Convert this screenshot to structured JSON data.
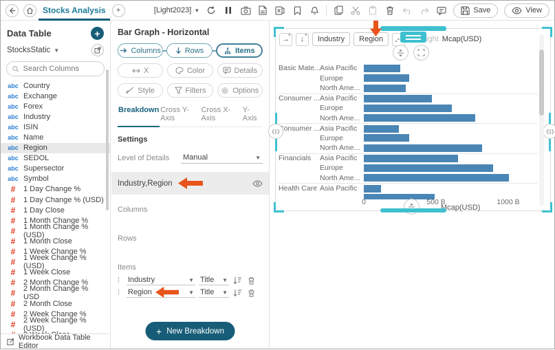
{
  "toolbar": {
    "tab_title": "Stocks Analysis",
    "workspace": "[Light2023]",
    "save_label": "Save",
    "view_label": "View"
  },
  "left_panel": {
    "title": "Data Table",
    "table_name": "StocksStatic",
    "search_placeholder": "Search Columns",
    "footer": "Workbook Data Table Editor",
    "columns": [
      {
        "type": "text",
        "label": "Country"
      },
      {
        "type": "text",
        "label": "Exchange"
      },
      {
        "type": "text",
        "label": "Forex"
      },
      {
        "type": "text",
        "label": "Industry"
      },
      {
        "type": "text",
        "label": "ISIN"
      },
      {
        "type": "text",
        "label": "Name"
      },
      {
        "type": "text",
        "label": "Region",
        "selected": true
      },
      {
        "type": "text",
        "label": "SEDOL"
      },
      {
        "type": "text",
        "label": "Supersector"
      },
      {
        "type": "text",
        "label": "Symbol"
      },
      {
        "type": "number",
        "label": "1 Day Change %"
      },
      {
        "type": "number",
        "label": "1 Day Change % (USD)"
      },
      {
        "type": "number",
        "label": "1 Day Close"
      },
      {
        "type": "number",
        "label": "1 Month Change %"
      },
      {
        "type": "number",
        "label": "1 Month Change % (USD)"
      },
      {
        "type": "number",
        "label": "1 Month Close"
      },
      {
        "type": "number",
        "label": "1 Week Change %"
      },
      {
        "type": "number",
        "label": "1 Week Change % (USD)"
      },
      {
        "type": "number",
        "label": "1 Week Close"
      },
      {
        "type": "number",
        "label": "2 Month Change %"
      },
      {
        "type": "number",
        "label": "2 Month Change % USD"
      },
      {
        "type": "number",
        "label": "2 Month Close"
      },
      {
        "type": "number",
        "label": "2 Week Change %"
      },
      {
        "type": "number",
        "label": "2 Week Change % (USD)"
      },
      {
        "type": "number",
        "label": "2 Week Close",
        "clipped": true
      }
    ]
  },
  "middle_panel": {
    "title": "Bar Graph - Horizontal",
    "buttons": {
      "columns": "Columns",
      "rows": "Rows",
      "items": "Items",
      "x": "X",
      "color": "Color",
      "details": "Details",
      "style": "Style",
      "filters": "Filters",
      "options": "Options"
    },
    "tabs": [
      "Breakdown",
      "Cross Y-Axis",
      "Cross X-Axis",
      "Y-Axis"
    ],
    "active_tab": "Breakdown",
    "settings_label": "Settings",
    "level_of_details_label": "Level of Details",
    "level_of_details_value": "Manual",
    "breakdown_name": "Industry,Region",
    "columns_label": "Columns",
    "rows_label": "Rows",
    "items_label": "Items",
    "items": [
      {
        "name": "Industry",
        "mode": "Title"
      },
      {
        "name": "Region",
        "mode": "Title",
        "arrow": true
      }
    ],
    "new_breakdown_label": "New Breakdown"
  },
  "chart_panel": {
    "header": {
      "chips": [
        "Industry",
        "Region"
      ],
      "height_label": "Height",
      "height_value": "Mcap(USD)"
    }
  },
  "chart_data": {
    "type": "bar",
    "orientation": "horizontal",
    "title": "Bar Graph - Horizontal",
    "xlabel": "Mcap(USD)",
    "x_ticks": [
      "0",
      "500 B",
      "1000 B"
    ],
    "xlim_billions": [
      0,
      1200
    ],
    "unit": "billions USD (B)",
    "bar_color": "#4a86b5",
    "legend": "none",
    "grid": "off",
    "rows": [
      {
        "group": "Basic Mate...",
        "region": "Asia Pacific",
        "value": 253
      },
      {
        "group": "",
        "region": "Europe",
        "value": 313
      },
      {
        "group": "",
        "region": "North Ame...",
        "value": 292
      },
      {
        "group": "Consumer ...",
        "region": "Asia Pacific",
        "value": 469,
        "sep": true
      },
      {
        "group": "",
        "region": "Europe",
        "value": 608
      },
      {
        "group": "",
        "region": "North Ame...",
        "value": 771
      },
      {
        "group": "Consumer ...",
        "region": "Asia Pacific",
        "value": 243,
        "sep": true
      },
      {
        "group": "",
        "region": "Europe",
        "value": 313
      },
      {
        "group": "",
        "region": "North Ame...",
        "value": 818
      },
      {
        "group": "Financials",
        "region": "Asia Pacific",
        "value": 651,
        "sep": true
      },
      {
        "group": "",
        "region": "Europe",
        "value": 893
      },
      {
        "group": "",
        "region": "North Ame...",
        "value": 1006
      },
      {
        "group": "Health Care",
        "region": "Asia Pacific",
        "value": 118,
        "sep": true
      },
      {
        "group": "",
        "region": "",
        "value": 490,
        "clipped": true
      }
    ]
  }
}
